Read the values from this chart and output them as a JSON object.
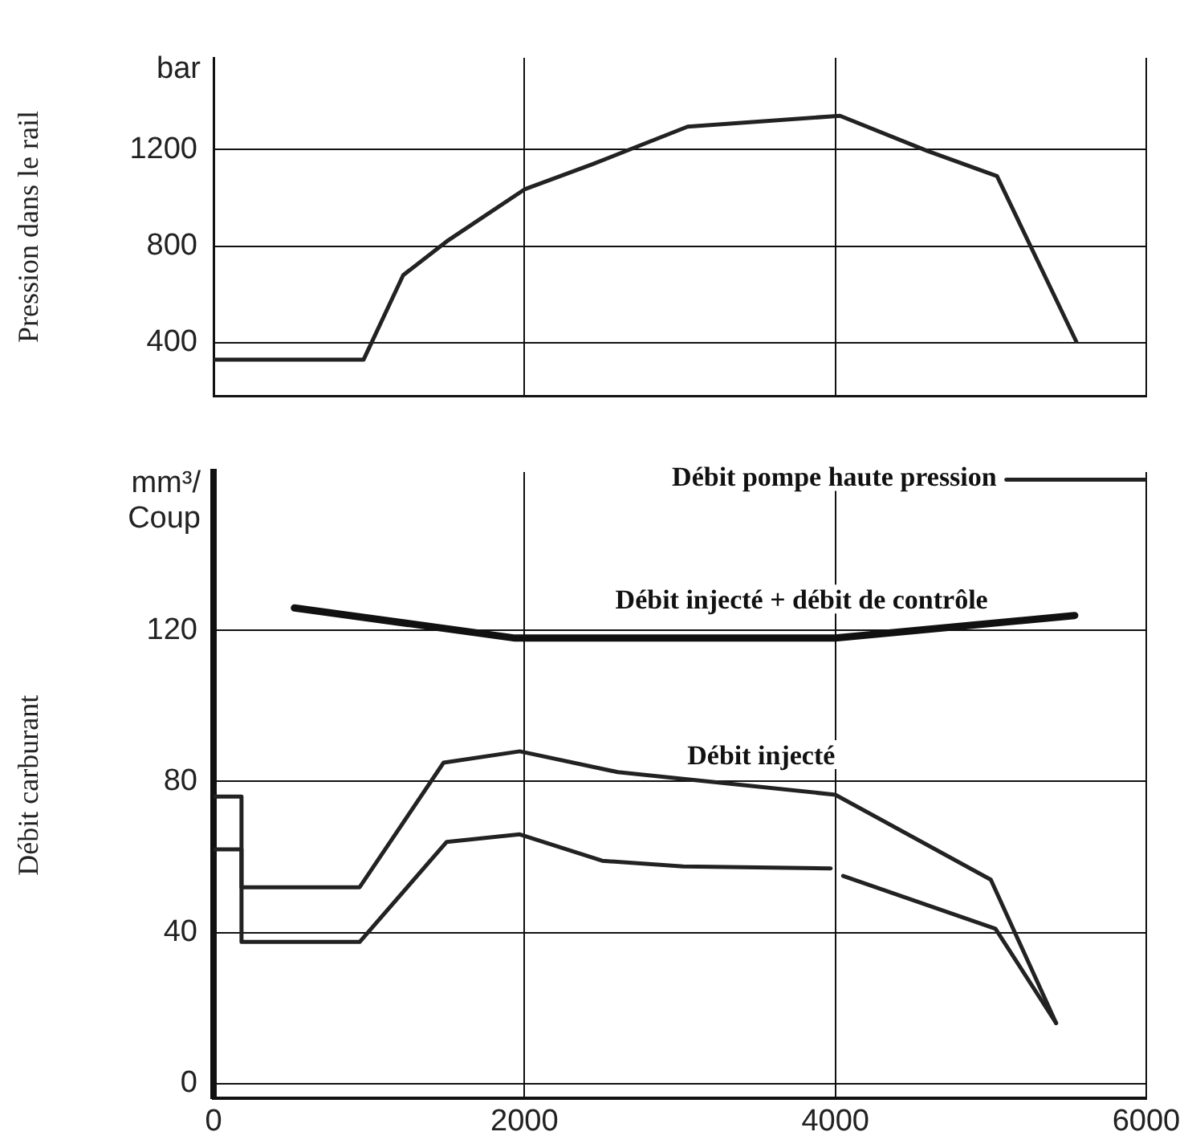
{
  "chart_data": [
    {
      "type": "line",
      "ylabel": "Pression dans le rail",
      "annotations": [
        "bar"
      ],
      "xlim": [
        0,
        6000
      ],
      "xticks": [
        0,
        2000,
        4000,
        6000
      ],
      "ylim": [
        180,
        1580
      ],
      "yticks": [
        400,
        800,
        1200
      ],
      "grid": true,
      "legend": false,
      "marker": "none",
      "line_style": "solid",
      "tick_labels": "y",
      "series": [
        {
          "color": "#222222",
          "x": [
            0,
            965,
            1220,
            1500,
            2000,
            2440,
            3050,
            4030,
            4590,
            5040,
            5550
          ],
          "values": [
            330,
            330,
            680,
            820,
            1035,
            1140,
            1295,
            1340,
            1195,
            1090,
            405
          ]
        }
      ]
    },
    {
      "type": "line",
      "ylabel": "Débit carburant",
      "annotations": [
        "mm³/ Coup"
      ],
      "xlim": [
        0,
        6000
      ],
      "xticks": [
        0,
        2000,
        4000,
        6000
      ],
      "ylim": [
        -4,
        162
      ],
      "yticks": [
        0,
        40,
        80,
        120
      ],
      "grid": true,
      "legend": false,
      "marker": "none",
      "line_style": "solid",
      "series": [
        {
          "name": "Débit pompe haute pression",
          "color": "#222222",
          "x": [
            5100,
            6000
          ],
          "values": [
            160,
            160
          ]
        },
        {
          "name": "Débit injecté + débit de contrôle",
          "color": "#111111",
          "x": [
            520,
            1940,
            4000,
            5540
          ],
          "values": [
            126,
            118,
            118,
            124
          ]
        },
        {
          "name": "Débit injecté",
          "color": "#222222",
          "x": [
            0,
            180,
            180,
            940,
            1480,
            1970,
            2600,
            4000,
            5000,
            5420
          ],
          "values": [
            76,
            76,
            52,
            52,
            85,
            88,
            82.5,
            76.5,
            54,
            16
          ]
        },
        {
          "color": "#222222",
          "x": [
            0,
            180,
            180,
            940,
            1500,
            1970,
            2500,
            3020,
            3970,
            4010,
            4050,
            5030,
            5420
          ],
          "values": [
            62,
            62,
            37.5,
            37.5,
            64,
            66,
            59,
            57.5,
            57,
            null,
            55,
            41,
            16
          ]
        }
      ]
    }
  ]
}
